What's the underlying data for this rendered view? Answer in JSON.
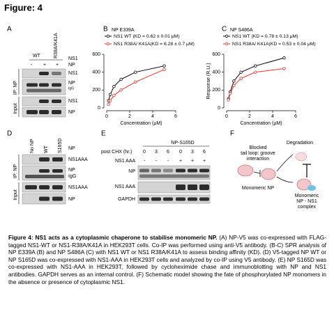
{
  "header": {
    "title": "Figure: 4"
  },
  "panel_labels": [
    "A",
    "B",
    "C",
    "D",
    "E",
    "F"
  ],
  "panel_a": {
    "top_labels": [
      "WT",
      "R38A/K41A",
      "NS1"
    ],
    "np_row": [
      "-",
      "+",
      "+",
      "NP"
    ],
    "side_labels": [
      "IP: NP",
      "Input"
    ],
    "right_labels": [
      "NS1",
      "NP",
      "IgG",
      "NS1",
      "NP"
    ]
  },
  "panel_d": {
    "top_labels": [
      "No NP",
      "WT",
      "S165D",
      "NP"
    ],
    "side_labels": [
      "IP: NP",
      "Input"
    ],
    "right_labels": [
      "NS1AAA",
      "NP",
      "IgG",
      "NS1AAA",
      "NP"
    ]
  },
  "panel_e": {
    "title": "NP-S165D",
    "chx_label": "post CHX (hr.)",
    "chx": [
      "0",
      "3",
      "6",
      "0",
      "3",
      "6"
    ],
    "ns1_label": "NS1 AAA",
    "ns1": [
      "-",
      "-",
      "-",
      "+",
      "+",
      "+"
    ],
    "blot_labels": [
      "NP",
      "NS1 AAA",
      "GAPDH"
    ]
  },
  "panel_f": {
    "blocked": [
      "Blocked",
      "tail loop: groove",
      "interaction"
    ],
    "degradation": "Degradation",
    "monomeric": "Monomeric NP",
    "complex": [
      "Monomeric",
      "NP - NS1",
      "complex"
    ]
  },
  "chart_data": [
    {
      "type": "line",
      "title": "NP E339A",
      "x": [
        0.16,
        0.31,
        0.63,
        1.25,
        2.5,
        5
      ],
      "series": [
        {
          "name": "NS1 WT (KD = 0.62 ± 0.01 μM)",
          "color": "#000000",
          "values": [
            80,
            150,
            240,
            320,
            400,
            470
          ]
        },
        {
          "name": "NS1 R38A/ K41A(KD = 6.28 ± 0.7 μM)",
          "color": "#e8312a",
          "values": [
            40,
            80,
            140,
            200,
            290,
            430
          ]
        }
      ],
      "xlabel": "Concentration (μM)",
      "xlim": [
        0,
        6
      ],
      "xticks": [
        0,
        2,
        4,
        6
      ],
      "ylim": [
        0,
        600
      ],
      "yticks": [
        0,
        200,
        400,
        600
      ]
    },
    {
      "type": "line",
      "title": "NP S486A",
      "x": [
        0.16,
        0.31,
        0.63,
        1.25,
        2.5,
        5
      ],
      "series": [
        {
          "name": "NS1 WT (KD = 0.78 ± 0.13 μM)",
          "color": "#000000",
          "values": [
            100,
            180,
            300,
            400,
            470,
            560
          ]
        },
        {
          "name": "NS1 R38A/ K41A(KD = 0.53 ± 0.04 μM)",
          "color": "#e8312a",
          "values": [
            90,
            160,
            250,
            330,
            400,
            440
          ]
        }
      ],
      "xlabel": "Concentration (μM)",
      "ylabel": "Response (R.U.)",
      "xlim": [
        0,
        6
      ],
      "xticks": [
        0,
        2,
        4,
        6
      ],
      "ylim": [
        0,
        600
      ],
      "yticks": [
        0,
        200,
        400,
        600
      ]
    }
  ],
  "caption": {
    "bold": "Figure 4: NS1 acts as a cytoplasmic chaperone to stabilise monomeric NP.",
    "text": " (A) NP-V5 was co-expressed with FLAG-tagged NS1-WT or NS1-R38A/K41A in HEK293T cells. Co-IP was performed using anti-V5 antibody. (B-C) SPR analysis of NP E339A (B) and NP S486A (C) with NS1 WT or NS1 R38A/K41A to assess binding affinity (KD). (D) V5-tagged NP WT or NP S165D was co-expressed with NS1-AAA in HEK293T cells and analyzed by co-IP using V5 antibody. (E) NP S165D was co-expressed with NS1-AAA in HEK293T, followed by cycloheximide chase and immunoblotting with NP and NS1 antibodies. GAPDH serves as an internal control. (F) Schematic model showing the fate of phosphorylated NP monomers in the absence or presence of cytoplasmic NS1."
  }
}
